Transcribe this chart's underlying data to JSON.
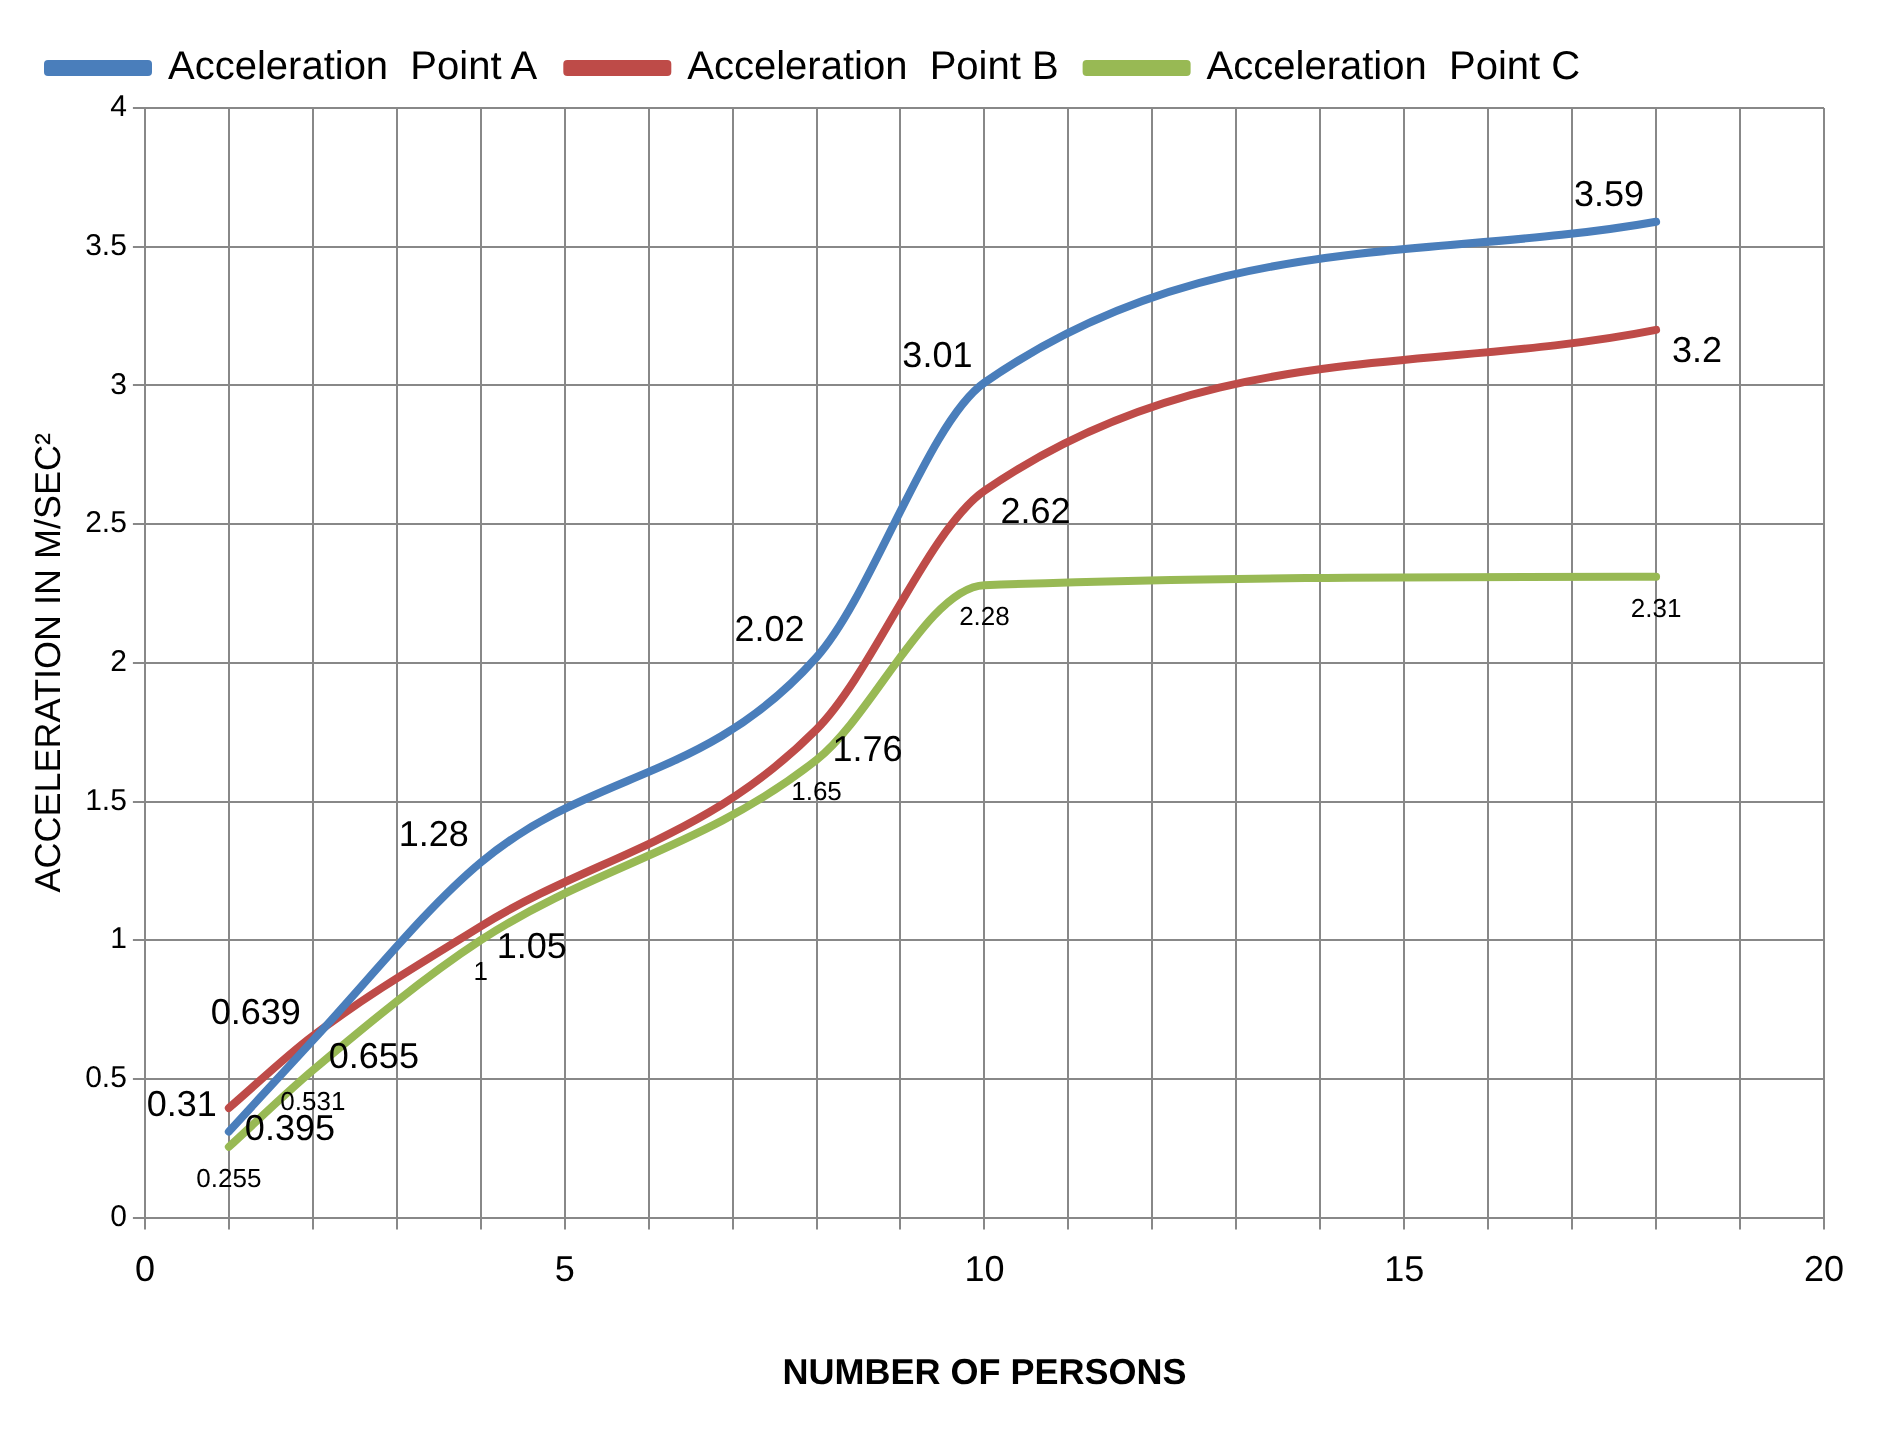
{
  "chart_data": {
    "type": "line",
    "xlabel": "NUMBER OF PERSONS",
    "ylabel": "ACCELERATION IN M/SEC²",
    "x": [
      1,
      2,
      4,
      8,
      10,
      18
    ],
    "series": [
      {
        "name": "Acceleration  Point A",
        "color": "#4a7ebb",
        "values": [
          0.31,
          0.639,
          1.28,
          2.02,
          3.01,
          3.59
        ]
      },
      {
        "name": "Acceleration  Point B",
        "color": "#be4b48",
        "values": [
          0.395,
          0.655,
          1.05,
          1.76,
          2.62,
          3.2
        ]
      },
      {
        "name": "Acceleration  Point C",
        "color": "#98b954",
        "values": [
          0.255,
          0.531,
          1,
          1.65,
          2.28,
          2.31
        ]
      }
    ],
    "xlim": [
      0,
      20
    ],
    "xticks": [
      0,
      {
        "value": 1,
        "label": null
      },
      {
        "value": 2,
        "label": null
      },
      {
        "value": 3,
        "label": null
      },
      {
        "value": 4,
        "label": null
      },
      5,
      {
        "value": 6,
        "label": null
      },
      {
        "value": 7,
        "label": null
      },
      {
        "value": 8,
        "label": null
      },
      {
        "value": 9,
        "label": null
      },
      10,
      {
        "value": 11,
        "label": null
      },
      {
        "value": 12,
        "label": null
      },
      {
        "value": 13,
        "label": null
      },
      {
        "value": 14,
        "label": null
      },
      15,
      {
        "value": 16,
        "label": null
      },
      {
        "value": 17,
        "label": null
      },
      {
        "value": 18,
        "label": null
      },
      {
        "value": 19,
        "label": null
      },
      20
    ],
    "ylim": [
      0,
      4
    ],
    "yticks": [
      0,
      0.5,
      1,
      1.5,
      2,
      2.5,
      3,
      3.5,
      4
    ],
    "grid": true,
    "legend": "top",
    "marker": "none",
    "line_style": "solid",
    "data_labels": true
  }
}
